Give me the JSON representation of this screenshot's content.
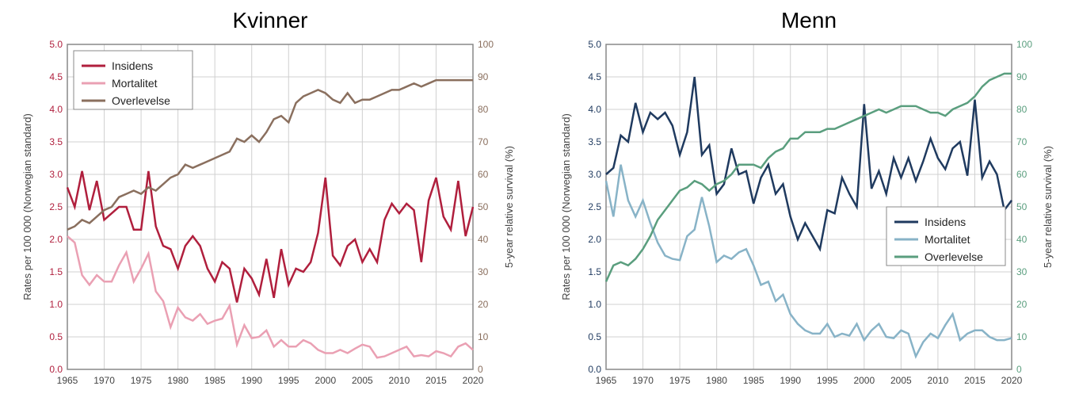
{
  "panels": [
    {
      "title": "Kvinner",
      "left_axis": {
        "label": "Rates per 100 000 (Norwegian standard)",
        "min": 0.0,
        "max": 5.0,
        "step": 0.5,
        "color": "#b01f3d"
      },
      "right_axis": {
        "label": "5-year relative survival (%)",
        "min": 0,
        "max": 100,
        "step": 10,
        "color": "#8a6f5e"
      },
      "x_axis": {
        "min": 1965,
        "max": 2020,
        "step": 5,
        "color": "#444"
      },
      "legend": {
        "position": "top-left",
        "items": [
          {
            "label": "Insidens",
            "color": "#b01f3d"
          },
          {
            "label": "Mortalitet",
            "color": "#eaa0b3"
          },
          {
            "label": "Overlevelse",
            "color": "#8a6f5e"
          }
        ]
      },
      "series": [
        {
          "name": "Insidens",
          "axis": "left",
          "color": "#b01f3d",
          "years": [
            1965,
            1966,
            1967,
            1968,
            1969,
            1970,
            1971,
            1972,
            1973,
            1974,
            1975,
            1976,
            1977,
            1978,
            1979,
            1980,
            1981,
            1982,
            1983,
            1984,
            1985,
            1986,
            1987,
            1988,
            1989,
            1990,
            1991,
            1992,
            1993,
            1994,
            1995,
            1996,
            1997,
            1998,
            1999,
            2000,
            2001,
            2002,
            2003,
            2004,
            2005,
            2006,
            2007,
            2008,
            2009,
            2010,
            2011,
            2012,
            2013,
            2014,
            2015,
            2016,
            2017,
            2018,
            2019,
            2020
          ],
          "values": [
            2.8,
            2.5,
            3.05,
            2.45,
            2.9,
            2.3,
            2.4,
            2.5,
            2.5,
            2.15,
            2.15,
            3.05,
            2.2,
            1.9,
            1.85,
            1.55,
            1.9,
            2.05,
            1.9,
            1.55,
            1.35,
            1.65,
            1.55,
            1.03,
            1.55,
            1.4,
            1.15,
            1.7,
            1.1,
            1.85,
            1.3,
            1.55,
            1.5,
            1.65,
            2.1,
            2.95,
            1.75,
            1.6,
            1.9,
            2.0,
            1.65,
            1.85,
            1.65,
            2.3,
            2.55,
            2.4,
            2.55,
            2.45,
            1.65,
            2.6,
            2.95,
            2.35,
            2.15,
            2.9,
            2.05,
            2.5
          ]
        },
        {
          "name": "Mortalitet",
          "axis": "left",
          "color": "#eaa0b3",
          "years": [
            1965,
            1966,
            1967,
            1968,
            1969,
            1970,
            1971,
            1972,
            1973,
            1974,
            1975,
            1976,
            1977,
            1978,
            1979,
            1980,
            1981,
            1982,
            1983,
            1984,
            1985,
            1986,
            1987,
            1988,
            1989,
            1990,
            1991,
            1992,
            1993,
            1994,
            1995,
            1996,
            1997,
            1998,
            1999,
            2000,
            2001,
            2002,
            2003,
            2004,
            2005,
            2006,
            2007,
            2008,
            2009,
            2010,
            2011,
            2012,
            2013,
            2014,
            2015,
            2016,
            2017,
            2018,
            2019,
            2020
          ],
          "values": [
            2.05,
            1.95,
            1.45,
            1.3,
            1.45,
            1.35,
            1.35,
            1.6,
            1.8,
            1.35,
            1.55,
            1.78,
            1.2,
            1.05,
            0.65,
            0.95,
            0.8,
            0.75,
            0.85,
            0.7,
            0.75,
            0.78,
            0.98,
            0.38,
            0.68,
            0.48,
            0.5,
            0.6,
            0.35,
            0.45,
            0.35,
            0.35,
            0.45,
            0.4,
            0.3,
            0.25,
            0.25,
            0.3,
            0.25,
            0.32,
            0.38,
            0.35,
            0.18,
            0.2,
            0.25,
            0.3,
            0.35,
            0.2,
            0.22,
            0.2,
            0.28,
            0.25,
            0.2,
            0.35,
            0.4,
            0.3
          ]
        },
        {
          "name": "Overlevelse",
          "axis": "right",
          "color": "#8a6f5e",
          "years": [
            1965,
            1966,
            1967,
            1968,
            1969,
            1970,
            1971,
            1972,
            1973,
            1974,
            1975,
            1976,
            1977,
            1978,
            1979,
            1980,
            1981,
            1982,
            1983,
            1984,
            1985,
            1986,
            1987,
            1988,
            1989,
            1990,
            1991,
            1992,
            1993,
            1994,
            1995,
            1996,
            1997,
            1998,
            1999,
            2000,
            2001,
            2002,
            2003,
            2004,
            2005,
            2006,
            2007,
            2008,
            2009,
            2010,
            2011,
            2012,
            2013,
            2014,
            2015,
            2016,
            2017,
            2018,
            2019,
            2020
          ],
          "values": [
            43,
            44,
            46,
            45,
            47,
            49,
            50,
            53,
            54,
            55,
            54,
            56,
            55,
            57,
            59,
            60,
            63,
            62,
            63,
            64,
            65,
            66,
            67,
            71,
            70,
            72,
            70,
            73,
            77,
            78,
            76,
            82,
            84,
            85,
            86,
            85,
            83,
            82,
            85,
            82,
            83,
            83,
            84,
            85,
            86,
            86,
            87,
            88,
            87,
            88,
            89,
            89,
            89,
            89,
            89,
            89
          ]
        }
      ],
      "background_color": "#ffffff",
      "grid_color": "#d0d0d0",
      "title_fontsize": 28,
      "tick_fontsize": 12,
      "label_fontsize": 13,
      "line_width": 2.5
    },
    {
      "title": "Menn",
      "left_axis": {
        "label": "Rates per 100 000 (Norwegian standard)",
        "min": 0.0,
        "max": 5.0,
        "step": 0.5,
        "color": "#1f3a5f"
      },
      "right_axis": {
        "label": "5-year relative survival (%)",
        "min": 0,
        "max": 100,
        "step": 10,
        "color": "#5a9e7e"
      },
      "x_axis": {
        "min": 1965,
        "max": 2020,
        "step": 5,
        "color": "#444"
      },
      "legend": {
        "position": "middle-right",
        "items": [
          {
            "label": "Insidens",
            "color": "#1f3a5f"
          },
          {
            "label": "Mortalitet",
            "color": "#88b3c7"
          },
          {
            "label": "Overlevelse",
            "color": "#5a9e7e"
          }
        ]
      },
      "series": [
        {
          "name": "Insidens",
          "axis": "left",
          "color": "#1f3a5f",
          "years": [
            1965,
            1966,
            1967,
            1968,
            1969,
            1970,
            1971,
            1972,
            1973,
            1974,
            1975,
            1976,
            1977,
            1978,
            1979,
            1980,
            1981,
            1982,
            1983,
            1984,
            1985,
            1986,
            1987,
            1988,
            1989,
            1990,
            1991,
            1992,
            1993,
            1994,
            1995,
            1996,
            1997,
            1998,
            1999,
            2000,
            2001,
            2002,
            2003,
            2004,
            2005,
            2006,
            2007,
            2008,
            2009,
            2010,
            2011,
            2012,
            2013,
            2014,
            2015,
            2016,
            2017,
            2018,
            2019,
            2020
          ],
          "values": [
            3.0,
            3.1,
            3.6,
            3.5,
            4.1,
            3.65,
            3.95,
            3.85,
            3.95,
            3.75,
            3.3,
            3.65,
            4.5,
            3.3,
            3.45,
            2.7,
            2.85,
            3.4,
            3.0,
            3.05,
            2.55,
            2.95,
            3.15,
            2.7,
            2.85,
            2.35,
            2.0,
            2.25,
            2.05,
            1.85,
            2.45,
            2.4,
            2.95,
            2.7,
            2.5,
            4.08,
            2.78,
            3.05,
            2.7,
            3.25,
            2.95,
            3.25,
            2.9,
            3.2,
            3.55,
            3.25,
            3.08,
            3.4,
            3.5,
            2.98,
            4.15,
            2.95,
            3.2,
            3.0,
            2.45,
            2.6
          ]
        },
        {
          "name": "Mortalitet",
          "axis": "left",
          "color": "#88b3c7",
          "years": [
            1965,
            1966,
            1967,
            1968,
            1969,
            1970,
            1971,
            1972,
            1973,
            1974,
            1975,
            1976,
            1977,
            1978,
            1979,
            1980,
            1981,
            1982,
            1983,
            1984,
            1985,
            1986,
            1987,
            1988,
            1989,
            1990,
            1991,
            1992,
            1993,
            1994,
            1995,
            1996,
            1997,
            1998,
            1999,
            2000,
            2001,
            2002,
            2003,
            2004,
            2005,
            2006,
            2007,
            2008,
            2009,
            2010,
            2011,
            2012,
            2013,
            2014,
            2015,
            2016,
            2017,
            2018,
            2019,
            2020
          ],
          "values": [
            2.9,
            2.35,
            3.15,
            2.6,
            2.35,
            2.6,
            2.25,
            1.95,
            1.75,
            1.7,
            1.68,
            2.05,
            2.15,
            2.65,
            2.2,
            1.65,
            1.75,
            1.7,
            1.8,
            1.85,
            1.6,
            1.3,
            1.35,
            1.05,
            1.15,
            0.85,
            0.7,
            0.6,
            0.55,
            0.55,
            0.7,
            0.5,
            0.55,
            0.52,
            0.7,
            0.45,
            0.6,
            0.7,
            0.5,
            0.48,
            0.6,
            0.55,
            0.2,
            0.42,
            0.55,
            0.48,
            0.68,
            0.85,
            0.45,
            0.55,
            0.6,
            0.6,
            0.5,
            0.45,
            0.45,
            0.48
          ]
        },
        {
          "name": "Overlevelse",
          "axis": "right",
          "color": "#5a9e7e",
          "years": [
            1965,
            1966,
            1967,
            1968,
            1969,
            1970,
            1971,
            1972,
            1973,
            1974,
            1975,
            1976,
            1977,
            1978,
            1979,
            1980,
            1981,
            1982,
            1983,
            1984,
            1985,
            1986,
            1987,
            1988,
            1989,
            1990,
            1991,
            1992,
            1993,
            1994,
            1995,
            1996,
            1997,
            1998,
            1999,
            2000,
            2001,
            2002,
            2003,
            2004,
            2005,
            2006,
            2007,
            2008,
            2009,
            2010,
            2011,
            2012,
            2013,
            2014,
            2015,
            2016,
            2017,
            2018,
            2019,
            2020
          ],
          "values": [
            27,
            32,
            33,
            32,
            34,
            37,
            41,
            46,
            49,
            52,
            55,
            56,
            58,
            57,
            55,
            57,
            58,
            60,
            63,
            63,
            63,
            62,
            65,
            67,
            68,
            71,
            71,
            73,
            73,
            73,
            74,
            74,
            75,
            76,
            77,
            78,
            79,
            80,
            79,
            80,
            81,
            81,
            81,
            80,
            79,
            79,
            78,
            80,
            81,
            82,
            84,
            87,
            89,
            90,
            91,
            91
          ]
        }
      ],
      "background_color": "#ffffff",
      "grid_color": "#d0d0d0",
      "title_fontsize": 28,
      "tick_fontsize": 12,
      "label_fontsize": 13,
      "line_width": 2.5
    }
  ]
}
